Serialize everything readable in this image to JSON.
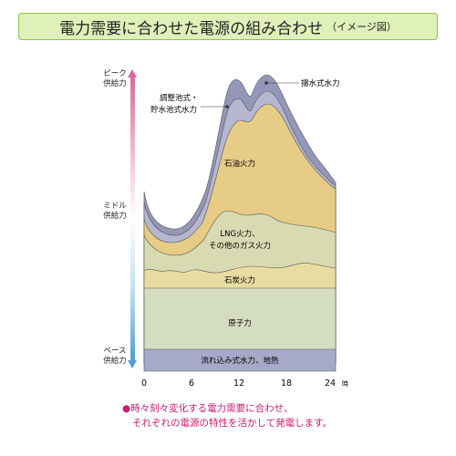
{
  "header": {
    "title": "電力需要に合わせた電源の組み合わせ",
    "subtitle": "（イメージ図）"
  },
  "levels": {
    "peak": [
      "ピーク",
      "供給力"
    ],
    "middle": [
      "ミドル",
      "供給力"
    ],
    "base": [
      "ベース",
      "供給力"
    ]
  },
  "footnote": {
    "bullet": "●",
    "line1": "時々刻々変化する電力需要に合わせ、",
    "line2": "それぞれの電源の特性を活かして発電します。"
  },
  "chart_data": {
    "type": "area",
    "x_ticks": [
      "0",
      "6",
      "12",
      "18",
      "24"
    ],
    "x_unit": "時",
    "layers": [
      {
        "name": "流れ込み式水力、地熱",
        "color": "#a7a9c8"
      },
      {
        "name": "原子力",
        "color": "#d5ddbf"
      },
      {
        "name": "石炭火力",
        "color": "#e8dca0"
      },
      {
        "name": "LNG火力、その他のガス火力",
        "color": "#d8dbb2"
      },
      {
        "name": "石油火力",
        "color": "#e7cc86"
      },
      {
        "name": "調整池式・貯水池式水力",
        "color": "#b4b7cf"
      },
      {
        "name": "揚水式水力",
        "color": "#9497b9"
      }
    ],
    "annotations": {
      "pumped": "揚水式水力",
      "reservoir_line1": "調整池式・",
      "reservoir_line2": "貯水池式水力"
    }
  }
}
